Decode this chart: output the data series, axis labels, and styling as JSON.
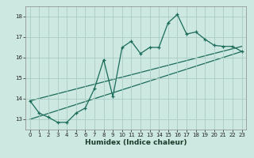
{
  "title": "",
  "xlabel": "Humidex (Indice chaleur)",
  "xlim": [
    -0.5,
    23.5
  ],
  "ylim": [
    12.5,
    18.5
  ],
  "xticks": [
    0,
    1,
    2,
    3,
    4,
    5,
    6,
    7,
    8,
    9,
    10,
    11,
    12,
    13,
    14,
    15,
    16,
    17,
    18,
    19,
    20,
    21,
    22,
    23
  ],
  "yticks": [
    13,
    14,
    15,
    16,
    17,
    18
  ],
  "bg_color": "#cce8e0",
  "grid_color": "#aaccc4",
  "line_color": "#1a6b5a",
  "line1_x": [
    0,
    1,
    2,
    3,
    4,
    5,
    6,
    7,
    8,
    9,
    10,
    11,
    12,
    13,
    14,
    15,
    16,
    17,
    18,
    19,
    20,
    21,
    22,
    23
  ],
  "line1_y": [
    13.9,
    13.3,
    13.1,
    12.85,
    12.85,
    13.3,
    13.55,
    14.5,
    15.9,
    14.1,
    16.5,
    16.8,
    16.2,
    16.5,
    16.5,
    17.7,
    18.1,
    17.15,
    17.25,
    16.9,
    16.6,
    16.55,
    16.55,
    16.3
  ],
  "line2_x": [
    0,
    23
  ],
  "line2_y": [
    13.0,
    16.3
  ],
  "line3_x": [
    0,
    23
  ],
  "line3_y": [
    13.9,
    16.55
  ]
}
